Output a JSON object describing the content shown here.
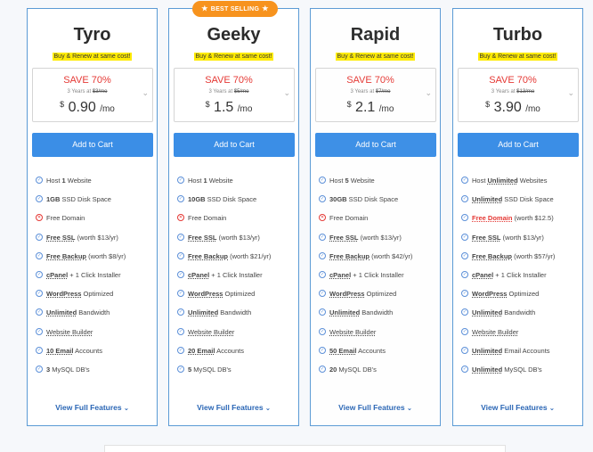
{
  "badge": "BEST SELLING",
  "view_label": "View Full Features",
  "plans": [
    {
      "name": "Tyro",
      "promo": "Buy & Renew at same cost!",
      "save": "SAVE 70%",
      "years": "3 Years at",
      "old_price": "$3/mo",
      "currency": "$",
      "price": "0.90",
      "per": "/mo",
      "button": "Add to Cart",
      "features": [
        {
          "icon": "check",
          "parts": [
            {
              "t": "Host "
            },
            {
              "t": "1",
              "b": true
            },
            {
              "t": " Website"
            }
          ]
        },
        {
          "icon": "check",
          "parts": [
            {
              "t": "1GB",
              "b": true
            },
            {
              "t": " SSD Disk Space"
            }
          ]
        },
        {
          "icon": "x",
          "parts": [
            {
              "t": "Free Domain"
            }
          ]
        },
        {
          "icon": "check",
          "parts": [
            {
              "t": "Free SSL",
              "b": true,
              "u": true
            },
            {
              "t": " (worth $13/yr)"
            }
          ]
        },
        {
          "icon": "check",
          "parts": [
            {
              "t": "Free Backup",
              "b": true,
              "u": true
            },
            {
              "t": " (worth $8/yr)"
            }
          ]
        },
        {
          "icon": "check",
          "parts": [
            {
              "t": "cPanel",
              "b": true,
              "u": true
            },
            {
              "t": " + 1 Click Installer"
            }
          ]
        },
        {
          "icon": "check",
          "parts": [
            {
              "t": "WordPress",
              "b": true,
              "u": true
            },
            {
              "t": " Optimized"
            }
          ]
        },
        {
          "icon": "check",
          "parts": [
            {
              "t": "Unlimited",
              "b": true,
              "u": true
            },
            {
              "t": " Bandwidth"
            }
          ]
        },
        {
          "icon": "check",
          "parts": [
            {
              "t": "Website Builder",
              "u": true
            }
          ]
        },
        {
          "icon": "check",
          "parts": [
            {
              "t": "10 Email",
              "b": true,
              "u": true
            },
            {
              "t": " Accounts"
            }
          ]
        },
        {
          "icon": "check",
          "parts": [
            {
              "t": "3",
              "b": true
            },
            {
              "t": " MySQL DB's"
            }
          ]
        }
      ]
    },
    {
      "name": "Geeky",
      "promo": "Buy & Renew at same cost!",
      "save": "SAVE 70%",
      "years": "3 Years at",
      "old_price": "$5/mo",
      "currency": "$",
      "price": "1.5",
      "per": "/mo",
      "button": "Add to Cart",
      "features": [
        {
          "icon": "check",
          "parts": [
            {
              "t": "Host "
            },
            {
              "t": "1",
              "b": true
            },
            {
              "t": " Website"
            }
          ]
        },
        {
          "icon": "check",
          "parts": [
            {
              "t": "10GB",
              "b": true
            },
            {
              "t": " SSD Disk Space"
            }
          ]
        },
        {
          "icon": "x",
          "parts": [
            {
              "t": "Free Domain"
            }
          ]
        },
        {
          "icon": "check",
          "parts": [
            {
              "t": "Free SSL",
              "b": true,
              "u": true
            },
            {
              "t": " (worth $13/yr)"
            }
          ]
        },
        {
          "icon": "check",
          "parts": [
            {
              "t": "Free Backup",
              "b": true,
              "u": true
            },
            {
              "t": " (worth $21/yr)"
            }
          ]
        },
        {
          "icon": "check",
          "parts": [
            {
              "t": "cPanel",
              "b": true,
              "u": true
            },
            {
              "t": " + 1 Click Installer"
            }
          ]
        },
        {
          "icon": "check",
          "parts": [
            {
              "t": "WordPress",
              "b": true,
              "u": true
            },
            {
              "t": " Optimized"
            }
          ]
        },
        {
          "icon": "check",
          "parts": [
            {
              "t": "Unlimited",
              "b": true,
              "u": true
            },
            {
              "t": " Bandwidth"
            }
          ]
        },
        {
          "icon": "check",
          "parts": [
            {
              "t": "Website Builder",
              "u": true
            }
          ]
        },
        {
          "icon": "check",
          "parts": [
            {
              "t": "20 Email",
              "b": true,
              "u": true
            },
            {
              "t": " Accounts"
            }
          ]
        },
        {
          "icon": "check",
          "parts": [
            {
              "t": "5",
              "b": true
            },
            {
              "t": " MySQL DB's"
            }
          ]
        }
      ]
    },
    {
      "name": "Rapid",
      "promo": "Buy & Renew at same cost!",
      "save": "SAVE 70%",
      "years": "3 Years at",
      "old_price": "$7/mo",
      "currency": "$",
      "price": "2.1",
      "per": "/mo",
      "button": "Add to Cart",
      "features": [
        {
          "icon": "check",
          "parts": [
            {
              "t": "Host "
            },
            {
              "t": "5",
              "b": true
            },
            {
              "t": " Website"
            }
          ]
        },
        {
          "icon": "check",
          "parts": [
            {
              "t": "30GB",
              "b": true
            },
            {
              "t": " SSD Disk Space"
            }
          ]
        },
        {
          "icon": "x",
          "parts": [
            {
              "t": "Free Domain"
            }
          ]
        },
        {
          "icon": "check",
          "parts": [
            {
              "t": "Free SSL",
              "b": true,
              "u": true
            },
            {
              "t": " (worth $13/yr)"
            }
          ]
        },
        {
          "icon": "check",
          "parts": [
            {
              "t": "Free Backup",
              "b": true,
              "u": true
            },
            {
              "t": " (worth $42/yr)"
            }
          ]
        },
        {
          "icon": "check",
          "parts": [
            {
              "t": "cPanel",
              "b": true,
              "u": true
            },
            {
              "t": " + 1 Click Installer"
            }
          ]
        },
        {
          "icon": "check",
          "parts": [
            {
              "t": "WordPress",
              "b": true,
              "u": true
            },
            {
              "t": " Optimized"
            }
          ]
        },
        {
          "icon": "check",
          "parts": [
            {
              "t": "Unlimited",
              "b": true,
              "u": true
            },
            {
              "t": " Bandwidth"
            }
          ]
        },
        {
          "icon": "check",
          "parts": [
            {
              "t": "Website Builder",
              "u": true
            }
          ]
        },
        {
          "icon": "check",
          "parts": [
            {
              "t": "50 Email",
              "b": true,
              "u": true
            },
            {
              "t": " Accounts"
            }
          ]
        },
        {
          "icon": "check",
          "parts": [
            {
              "t": "20",
              "b": true
            },
            {
              "t": " MySQL DB's"
            }
          ]
        }
      ]
    },
    {
      "name": "Turbo",
      "promo": "Buy & Renew at same cost!",
      "save": "SAVE 70%",
      "years": "3 Years at",
      "old_price": "$13/mo",
      "currency": "$",
      "price": "3.90",
      "per": "/mo",
      "button": "Add to Cart",
      "features": [
        {
          "icon": "check",
          "parts": [
            {
              "t": "Host "
            },
            {
              "t": "Unlimited",
              "b": true,
              "u": true
            },
            {
              "t": " Websites"
            }
          ]
        },
        {
          "icon": "check",
          "parts": [
            {
              "t": "Unlimited",
              "b": true,
              "u": true
            },
            {
              "t": " SSD Disk Space"
            }
          ]
        },
        {
          "icon": "check",
          "parts": [
            {
              "t": "Free Domain",
              "b": true,
              "u": true,
              "red": true
            },
            {
              "t": " (worth $12.5)"
            }
          ]
        },
        {
          "icon": "check",
          "parts": [
            {
              "t": "Free SSL",
              "b": true,
              "u": true
            },
            {
              "t": " (worth $13/yr)"
            }
          ]
        },
        {
          "icon": "check",
          "parts": [
            {
              "t": "Free Backup",
              "b": true,
              "u": true
            },
            {
              "t": " (worth $57/yr)"
            }
          ]
        },
        {
          "icon": "check",
          "parts": [
            {
              "t": "cPanel",
              "b": true,
              "u": true
            },
            {
              "t": " + 1 Click Installer"
            }
          ]
        },
        {
          "icon": "check",
          "parts": [
            {
              "t": "WordPress",
              "b": true,
              "u": true
            },
            {
              "t": " Optimized"
            }
          ]
        },
        {
          "icon": "check",
          "parts": [
            {
              "t": "Unlimited",
              "b": true,
              "u": true
            },
            {
              "t": " Bandwidth"
            }
          ]
        },
        {
          "icon": "check",
          "parts": [
            {
              "t": "Website Builder",
              "u": true
            }
          ]
        },
        {
          "icon": "check",
          "parts": [
            {
              "t": "Unlimited",
              "b": true,
              "u": true
            },
            {
              "t": " Email Accounts"
            }
          ]
        },
        {
          "icon": "check",
          "parts": [
            {
              "t": "Unlimited",
              "b": true,
              "u": true
            },
            {
              "t": " MySQL DB's"
            }
          ]
        }
      ]
    }
  ]
}
